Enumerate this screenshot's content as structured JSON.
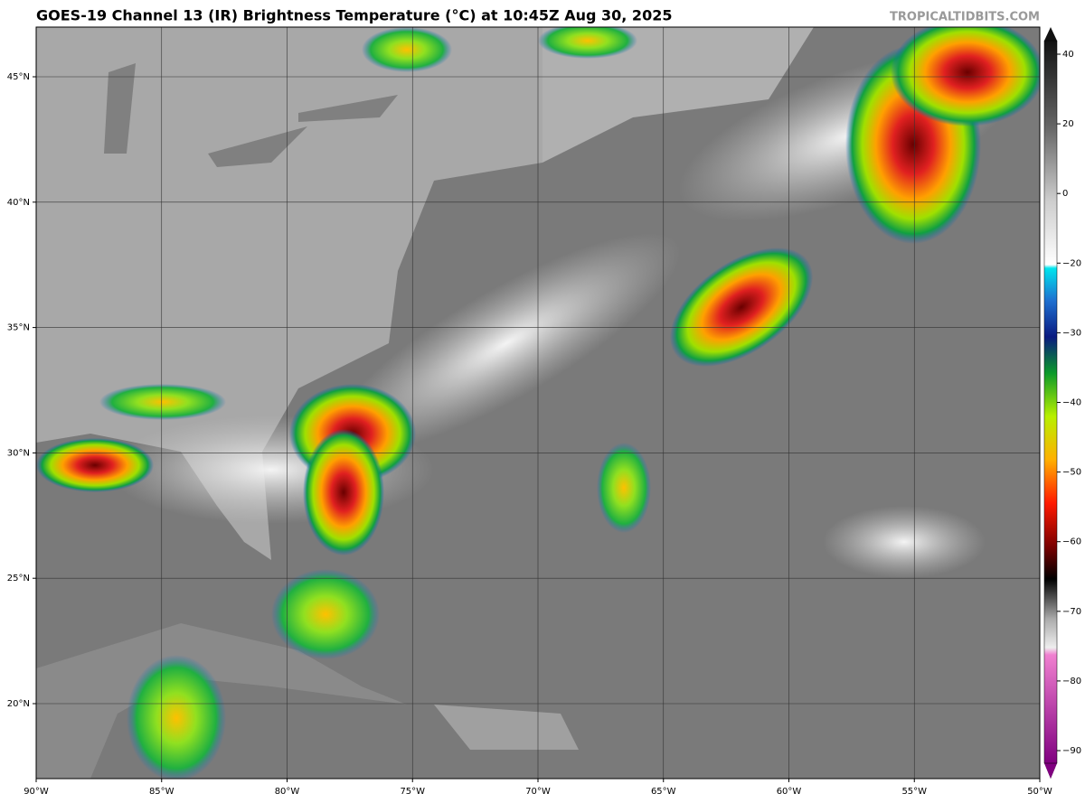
{
  "header": {
    "title": "GOES-19 Channel 13 (IR) Brightness Temperature (°C) at 10:45Z Aug 30, 2025",
    "source": "TROPICALTIDBITS.COM"
  },
  "map": {
    "lat_labels": [
      "45°N",
      "40°N",
      "35°N",
      "30°N",
      "25°N",
      "20°N"
    ],
    "lon_labels": [
      "90°W",
      "85°W",
      "80°W",
      "75°W",
      "70°W",
      "65°W",
      "60°W",
      "55°W",
      "50°W"
    ]
  },
  "colorbar": {
    "labels": [
      "40",
      "20",
      "0",
      "−20",
      "−30",
      "−40",
      "−50",
      "−60",
      "−70",
      "−80",
      "−90"
    ]
  }
}
